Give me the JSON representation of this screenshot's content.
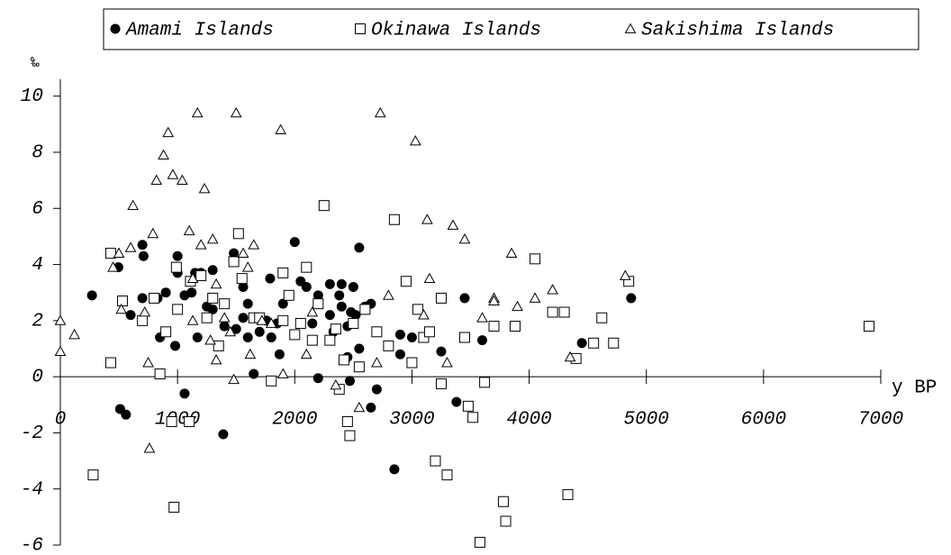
{
  "chart_data": {
    "type": "scatter",
    "x_label": "y BP",
    "y_label": "‰",
    "legend": "top",
    "xlim": [
      0,
      7000
    ],
    "ylim": [
      -6,
      10.6
    ],
    "xticks": [
      0,
      1000,
      2000,
      3000,
      4000,
      5000,
      6000,
      7000
    ],
    "yticks": [
      -6,
      -4,
      -2,
      0,
      2,
      4,
      6,
      8,
      10
    ],
    "series": [
      {
        "name": "Amami Islands",
        "color": "#000000",
        "marker": "circle",
        "x": [
          270,
          495,
          510,
          560,
          600,
          700,
          710,
          700,
          830,
          850,
          900,
          1000,
          1000,
          980,
          1060,
          1060,
          1120,
          1150,
          1200,
          1170,
          1250,
          1300,
          1300,
          1390,
          1400,
          1480,
          1500,
          1560,
          1560,
          1600,
          1600,
          1650,
          1700,
          1760,
          1790,
          1800,
          1850,
          1870,
          1900,
          2000,
          2050,
          2100,
          2150,
          2200,
          2200,
          2300,
          2300,
          2330,
          2400,
          2400,
          2450,
          2450,
          2470,
          2500,
          2520,
          2550,
          2550,
          2600,
          2650,
          2650,
          2700,
          2850,
          2900,
          2900,
          3000,
          3250,
          3380,
          3450,
          3600,
          4450,
          4870,
          2380,
          2480
        ],
        "values": [
          2.9,
          3.9,
          -1.15,
          -1.35,
          2.2,
          4.7,
          4.3,
          2.8,
          2.8,
          1.4,
          3.0,
          4.3,
          3.7,
          1.1,
          2.9,
          -0.6,
          3.0,
          3.7,
          3.7,
          1.4,
          2.5,
          3.8,
          2.4,
          -2.05,
          1.8,
          4.4,
          1.7,
          3.2,
          2.1,
          2.6,
          1.4,
          0.1,
          1.6,
          2.0,
          3.5,
          1.4,
          1.9,
          0.8,
          2.6,
          4.8,
          3.4,
          3.2,
          1.9,
          2.9,
          -0.05,
          3.3,
          2.2,
          1.6,
          2.5,
          3.3,
          1.8,
          0.7,
          -0.15,
          3.2,
          2.2,
          4.6,
          1.0,
          2.5,
          2.6,
          -1.1,
          -0.45,
          -3.3,
          0.8,
          1.5,
          1.4,
          0.9,
          -0.9,
          2.8,
          1.3,
          1.2,
          2.8,
          2.9,
          2.3
        ]
      },
      {
        "name": "Okinawa Islands",
        "color": "#000000",
        "marker": "square",
        "x": [
          280,
          430,
          430,
          530,
          700,
          800,
          850,
          900,
          950,
          970,
          990,
          1000,
          1100,
          1110,
          1200,
          1250,
          1300,
          1350,
          1400,
          1480,
          1520,
          1550,
          1650,
          1700,
          1800,
          1900,
          1900,
          1950,
          2000,
          2050,
          2100,
          2150,
          2200,
          2250,
          2300,
          2350,
          2380,
          2420,
          2450,
          2470,
          2500,
          2550,
          2600,
          2700,
          2800,
          2850,
          2950,
          3000,
          3050,
          3100,
          3150,
          3200,
          3250,
          3250,
          3300,
          3450,
          3480,
          3520,
          3580,
          3620,
          3700,
          3780,
          3800,
          3880,
          4050,
          4200,
          4300,
          4330,
          4400,
          4550,
          4620,
          4720,
          4850,
          6900
        ],
        "values": [
          -3.5,
          4.4,
          0.5,
          2.7,
          2.0,
          2.8,
          0.1,
          1.6,
          -1.6,
          -4.65,
          3.9,
          2.4,
          -1.6,
          3.4,
          3.6,
          2.1,
          2.8,
          1.1,
          2.6,
          4.1,
          5.1,
          3.5,
          2.1,
          2.1,
          -0.15,
          3.7,
          2.0,
          2.9,
          1.5,
          1.9,
          3.9,
          1.3,
          2.6,
          6.1,
          1.3,
          1.7,
          -0.45,
          0.6,
          -1.6,
          -2.1,
          1.9,
          0.35,
          2.4,
          1.6,
          1.1,
          5.6,
          3.4,
          0.5,
          2.4,
          1.4,
          1.6,
          -3.0,
          2.8,
          -0.25,
          -3.5,
          1.4,
          -1.05,
          -1.45,
          -5.9,
          -0.2,
          1.8,
          -4.45,
          -5.15,
          1.8,
          4.2,
          2.3,
          2.3,
          -4.2,
          0.65,
          1.2,
          2.1,
          1.2,
          3.4,
          1.8
        ]
      },
      {
        "name": "Sakishima Islands",
        "color": "#000000",
        "marker": "triangle",
        "x": [
          0,
          0,
          120,
          450,
          500,
          520,
          600,
          620,
          720,
          750,
          760,
          790,
          820,
          880,
          920,
          960,
          1040,
          1100,
          1130,
          1130,
          1170,
          1200,
          1230,
          1280,
          1300,
          1330,
          1330,
          1400,
          1450,
          1480,
          1500,
          1560,
          1600,
          1620,
          1650,
          1720,
          1800,
          1880,
          1900,
          2100,
          2150,
          2350,
          2550,
          2700,
          2730,
          2800,
          3030,
          3100,
          3130,
          3150,
          3300,
          3350,
          3450,
          3600,
          3700,
          3700,
          3850,
          3900,
          4050,
          4200,
          4350,
          4820
        ],
        "values": [
          2.0,
          0.9,
          1.5,
          3.9,
          4.4,
          2.4,
          4.6,
          6.1,
          2.3,
          0.5,
          -2.55,
          5.1,
          7.0,
          7.9,
          8.7,
          7.2,
          7.0,
          5.2,
          3.5,
          2.0,
          9.4,
          4.7,
          6.7,
          1.3,
          4.9,
          3.3,
          0.6,
          2.1,
          1.6,
          -0.1,
          9.4,
          4.4,
          3.9,
          0.8,
          4.7,
          2.0,
          1.9,
          8.8,
          0.1,
          0.8,
          2.3,
          -0.3,
          -1.1,
          0.5,
          9.4,
          2.9,
          8.4,
          2.2,
          5.6,
          3.5,
          0.5,
          5.4,
          4.9,
          2.1,
          2.8,
          2.7,
          4.4,
          2.5,
          2.8,
          3.1,
          0.7,
          3.6
        ]
      }
    ]
  }
}
